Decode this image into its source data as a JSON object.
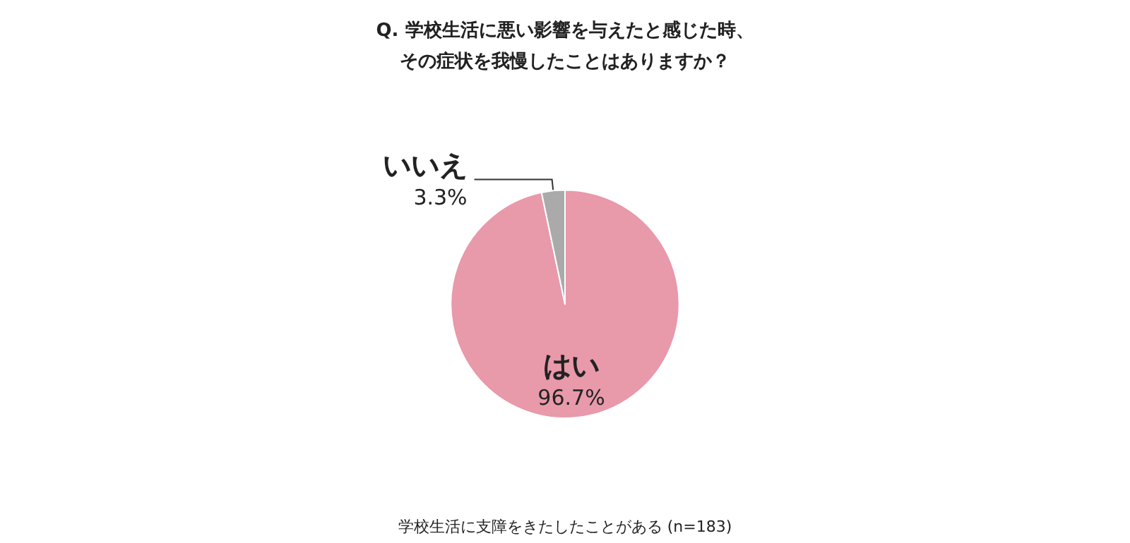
{
  "chart_data": {
    "type": "pie",
    "title": "Q. 学校生活に悪い影響を与えたと感じた時、その症状を我慢したことはありますか？",
    "categories": [
      "はい",
      "いいえ"
    ],
    "values": [
      96.7,
      3.3
    ],
    "value_labels": [
      "96.7%",
      "3.3%"
    ],
    "colors": [
      "#e899aa",
      "#aaaaaa"
    ],
    "annotations": [
      "学校生活に支障をきたしたことがある (n=183)"
    ],
    "legend": false
  }
}
